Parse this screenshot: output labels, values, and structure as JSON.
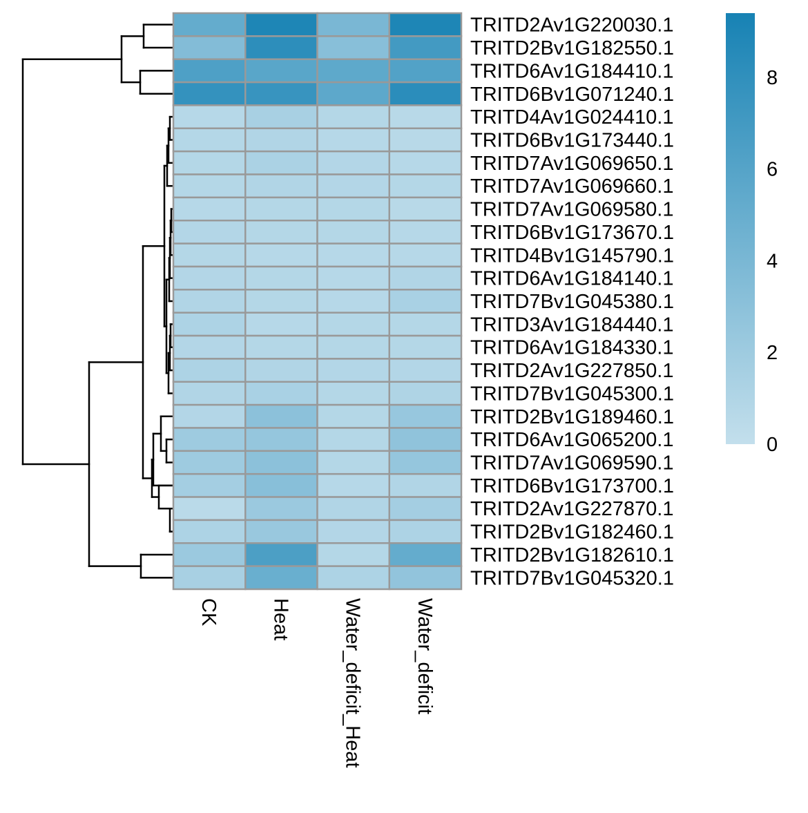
{
  "chart_data": {
    "type": "heatmap",
    "columns": [
      "CK",
      "Heat",
      "Water_deficit_Heat",
      "Water_deficit"
    ],
    "rows": [
      "TRITD2Av1G220030.1",
      "TRITD2Bv1G182550.1",
      "TRITD6Av1G184410.1",
      "TRITD6Bv1G071240.1",
      "TRITD4Av1G024410.1",
      "TRITD6Bv1G173440.1",
      "TRITD7Av1G069650.1",
      "TRITD7Av1G069660.1",
      "TRITD7Av1G069580.1",
      "TRITD6Bv1G173670.1",
      "TRITD4Bv1G145790.1",
      "TRITD6Av1G184140.1",
      "TRITD7Bv1G045380.1",
      "TRITD3Av1G184440.1",
      "TRITD6Av1G184330.1",
      "TRITD2Av1G227850.1",
      "TRITD7Bv1G045300.1",
      "TRITD2Bv1G189460.1",
      "TRITD6Av1G065200.1",
      "TRITD7Av1G069590.1",
      "TRITD6Bv1G173700.1",
      "TRITD2Av1G227870.1",
      "TRITD2Bv1G182460.1",
      "TRITD2Bv1G182610.1",
      "TRITD7Bv1G045320.1"
    ],
    "values": [
      [
        5.2,
        9.0,
        4.0,
        9.0
      ],
      [
        3.5,
        8.2,
        3.2,
        7.0
      ],
      [
        6.4,
        5.8,
        5.5,
        6.2
      ],
      [
        7.8,
        7.6,
        5.6,
        8.3
      ],
      [
        0.7,
        1.5,
        0.8,
        0.6
      ],
      [
        0.8,
        1.0,
        0.7,
        0.6
      ],
      [
        0.8,
        1.3,
        0.9,
        0.7
      ],
      [
        0.8,
        1.0,
        0.9,
        0.8
      ],
      [
        0.7,
        0.8,
        0.8,
        0.6
      ],
      [
        0.9,
        0.8,
        0.8,
        0.7
      ],
      [
        0.8,
        0.7,
        0.7,
        0.7
      ],
      [
        0.9,
        0.8,
        0.7,
        1.0
      ],
      [
        1.0,
        0.8,
        0.7,
        1.4
      ],
      [
        1.2,
        0.7,
        0.8,
        0.8
      ],
      [
        0.9,
        0.8,
        0.8,
        0.8
      ],
      [
        1.2,
        1.0,
        0.9,
        0.9
      ],
      [
        1.0,
        1.4,
        0.8,
        1.1
      ],
      [
        0.9,
        3.0,
        0.8,
        2.4
      ],
      [
        2.0,
        2.5,
        0.8,
        2.8
      ],
      [
        2.0,
        3.0,
        0.8,
        2.5
      ],
      [
        1.7,
        3.2,
        0.7,
        1.0
      ],
      [
        0.5,
        2.2,
        1.0,
        1.7
      ],
      [
        1.2,
        2.3,
        0.9,
        1.2
      ],
      [
        2.2,
        6.5,
        0.8,
        5.2
      ],
      [
        1.5,
        4.9,
        1.2,
        2.7
      ]
    ],
    "colorbar": {
      "ticks": [
        0,
        2,
        4,
        6,
        8
      ],
      "range": [
        0,
        9.4
      ],
      "low_color": "#c3dfec",
      "high_color": "#1782b4"
    },
    "dendrogram": "rows"
  },
  "colors": {
    "cell_border": "#999999",
    "tree_line": "#000000"
  }
}
